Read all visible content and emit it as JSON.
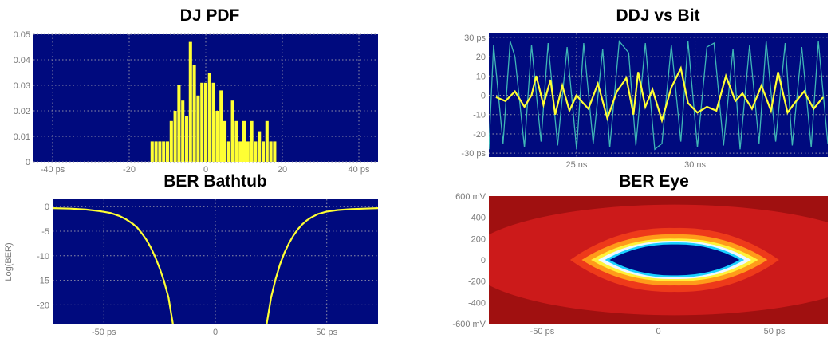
{
  "colors": {
    "plot_bg": "#000a7e",
    "yellow": "#ffff33",
    "cyan": "#3fb6b6",
    "grid": "#8f8fa6"
  },
  "chart_data": [
    {
      "id": "dj_pdf",
      "type": "bar",
      "title": "DJ PDF",
      "xlim": [
        -45,
        45
      ],
      "ylim": [
        0,
        0.05
      ],
      "xticks": [
        -40,
        -20,
        0,
        20,
        40
      ],
      "xtick_labels": [
        "-40 ps",
        "-20",
        "0",
        "20",
        "40 ps"
      ],
      "yticks": [
        0,
        0.01,
        0.02,
        0.03,
        0.04,
        0.05
      ],
      "ytick_labels": [
        "0",
        "0.01",
        "0.02",
        "0.03",
        "0.04",
        "0.05"
      ],
      "bar_width": 0.85,
      "x": [
        -14,
        -13,
        -12,
        -11,
        -10,
        -9,
        -8,
        -7,
        -6,
        -5,
        -4,
        -3,
        -2,
        -1,
        0,
        1,
        2,
        3,
        4,
        5,
        6,
        7,
        8,
        9,
        10,
        11,
        12,
        13,
        14,
        15,
        16,
        17,
        18
      ],
      "values": [
        0.008,
        0.008,
        0.008,
        0.008,
        0.008,
        0.016,
        0.02,
        0.03,
        0.024,
        0.018,
        0.047,
        0.038,
        0.026,
        0.031,
        0.031,
        0.035,
        0.031,
        0.02,
        0.028,
        0.016,
        0.008,
        0.024,
        0.016,
        0.008,
        0.016,
        0.008,
        0.016,
        0.008,
        0.012,
        0.008,
        0.016,
        0.008,
        0.008
      ]
    },
    {
      "id": "ddj_vs_bit",
      "type": "line",
      "title": "DDJ vs Bit",
      "xlim": [
        21.3,
        35.6
      ],
      "ylim": [
        -32,
        32
      ],
      "xticks": [
        25,
        30
      ],
      "xtick_labels": [
        "25 ns",
        "30 ns"
      ],
      "yticks": [
        -30,
        -20,
        -10,
        0,
        10,
        20,
        30
      ],
      "ytick_labels": [
        "-30 ps",
        "-20",
        "-10",
        "0",
        "10",
        "20",
        "30 ps"
      ],
      "series": [
        {
          "role": "waveform",
          "color": "cyan",
          "x": [
            21.3,
            21.5,
            21.9,
            22.2,
            22.4,
            22.8,
            23.1,
            23.5,
            23.8,
            24.2,
            24.6,
            25.0,
            25.3,
            25.7,
            26.1,
            26.4,
            26.8,
            27.2,
            27.5,
            27.9,
            28.3,
            28.6,
            29.0,
            29.4,
            29.7,
            30.1,
            30.5,
            30.8,
            31.2,
            31.6,
            31.9,
            32.3,
            32.7,
            33.0,
            33.4,
            33.8,
            34.1,
            34.5,
            34.9,
            35.2,
            35.6
          ],
          "y": [
            -28,
            26,
            -25,
            28,
            20,
            -27,
            26,
            -24,
            27,
            -26,
            25,
            -28,
            27,
            -25,
            24,
            -27,
            28,
            22,
            -26,
            27,
            -28,
            -25,
            26,
            -24,
            28,
            -27,
            25,
            27,
            -26,
            24,
            -28,
            26,
            -25,
            28,
            -24,
            27,
            -26,
            25,
            -27,
            28,
            -25
          ]
        },
        {
          "role": "ddj",
          "color": "yellow",
          "x": [
            21.6,
            22.0,
            22.4,
            22.8,
            23.1,
            23.3,
            23.6,
            23.9,
            24.1,
            24.4,
            24.7,
            25.0,
            25.2,
            25.5,
            25.9,
            26.3,
            26.7,
            27.1,
            27.4,
            27.6,
            27.9,
            28.2,
            28.6,
            29.0,
            29.4,
            29.7,
            30.1,
            30.5,
            30.9,
            31.3,
            31.7,
            32.0,
            32.4,
            32.8,
            33.2,
            33.5,
            33.9,
            34.2,
            34.6,
            35.0,
            35.4
          ],
          "y": [
            -1,
            -3,
            2,
            -6,
            0,
            10,
            -5,
            8,
            -10,
            5,
            -8,
            0,
            -3,
            -7,
            6,
            -12,
            2,
            9,
            -10,
            12,
            -6,
            3,
            -13,
            4,
            14,
            -4,
            -9,
            -6,
            -8,
            10,
            -3,
            1,
            -7,
            5,
            -8,
            12,
            -9,
            -4,
            2,
            -7,
            -1
          ]
        }
      ]
    },
    {
      "id": "ber_bathtub",
      "type": "line",
      "title": "BER Bathtub",
      "ylabel": "Log(BER)",
      "xlim": [
        -73,
        73
      ],
      "ylim": [
        -24,
        1.5
      ],
      "xticks": [
        -50,
        0,
        50
      ],
      "xtick_labels": [
        "-50 ps",
        "0",
        "50 ps"
      ],
      "yticks": [
        0,
        -5,
        -10,
        -15,
        -20
      ],
      "ytick_labels": [
        "0",
        "-5",
        "-10",
        "-15",
        "-20"
      ],
      "series": [
        {
          "role": "left",
          "color": "yellow",
          "x": [
            -73,
            -65,
            -58,
            -52,
            -47,
            -43,
            -40,
            -37,
            -35,
            -33,
            -31,
            -29,
            -27,
            -25,
            -23,
            -21,
            -19
          ],
          "y": [
            -0.3,
            -0.4,
            -0.6,
            -0.9,
            -1.3,
            -1.9,
            -2.6,
            -3.5,
            -4.3,
            -5.4,
            -6.7,
            -8.3,
            -10.2,
            -12.5,
            -15.2,
            -18.5,
            -24
          ]
        },
        {
          "role": "right",
          "color": "yellow",
          "x": [
            23,
            25,
            27,
            29,
            31,
            33,
            35,
            37,
            39,
            41,
            43,
            46,
            50,
            55,
            61,
            67,
            73
          ],
          "y": [
            -24,
            -18.5,
            -14.8,
            -11.8,
            -9.4,
            -7.5,
            -5.9,
            -4.6,
            -3.6,
            -2.8,
            -2.2,
            -1.5,
            -1.0,
            -0.7,
            -0.5,
            -0.4,
            -0.3
          ]
        }
      ]
    },
    {
      "id": "ber_eye",
      "type": "heatmap",
      "title": "BER Eye",
      "xlim": [
        -73,
        73
      ],
      "ylim": [
        -600,
        600
      ],
      "xticks": [
        -50,
        0,
        50
      ],
      "xtick_labels": [
        "-50 ps",
        "0",
        "50 ps"
      ],
      "yticks": [
        600,
        400,
        200,
        0,
        -200,
        -400,
        -600
      ],
      "ytick_labels": [
        "600 mV",
        "400",
        "200",
        "0",
        "-200",
        "-400",
        "-600 mV"
      ],
      "eye_center": [
        7,
        0
      ],
      "eye_half_width": [
        45,
        40,
        36,
        33,
        30,
        28
      ],
      "eye_half_height": [
        300,
        240,
        200,
        180,
        165,
        145
      ],
      "contour_colors": [
        "#cc1a1a",
        "#ee3a1a",
        "#ff9b1a",
        "#fff23a",
        "#eef7ff",
        "#1ad0ff",
        "#000a7e"
      ],
      "background_color": "#a01010"
    }
  ]
}
